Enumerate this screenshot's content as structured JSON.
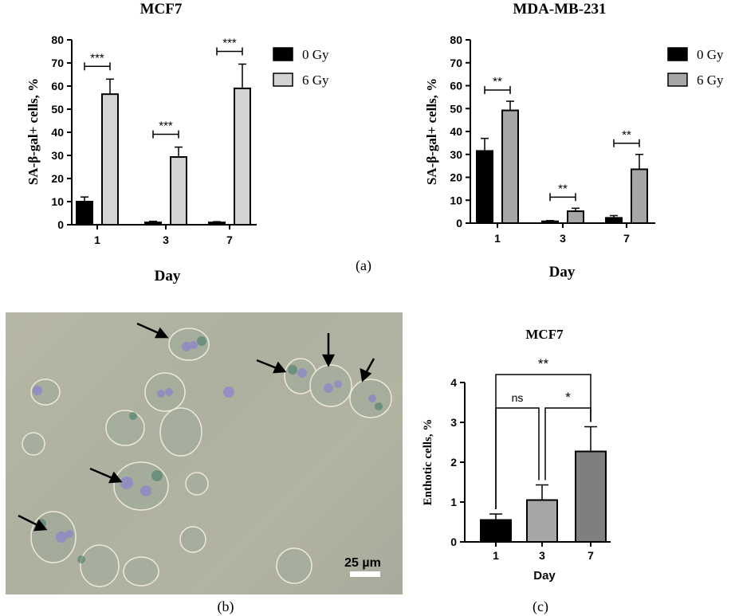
{
  "panel_labels": {
    "a": "(a)",
    "b": "(b)",
    "c": "(c)"
  },
  "photo": {
    "scale_bar_label": "25 µm"
  },
  "colors": {
    "gy0": "#000000",
    "gy6_mcf7": "#d3d3d3",
    "gy6_mda": "#a6a6a6",
    "c_day1": "#000000",
    "c_day3": "#a6a6a6",
    "c_day7": "#7f7f7f",
    "photo_bg": "#b1b2a1",
    "cell_stain": "#4a7a6a",
    "nucleus": "#7d78c8"
  },
  "chart_data": [
    {
      "type": "bar",
      "title": "MCF7",
      "xlabel": "Day",
      "ylabel": "SA-β-gal+ cells, %",
      "categories": [
        "1",
        "3",
        "7"
      ],
      "ylim": [
        0,
        80
      ],
      "yticks": [
        "0",
        "10",
        "20",
        "30",
        "40",
        "50",
        "60",
        "70",
        "80"
      ],
      "series": [
        {
          "name": "0 Gy",
          "values": [
            10,
            1,
            1
          ],
          "errors": [
            2,
            0.5,
            0.3
          ]
        },
        {
          "name": "6 Gy",
          "values": [
            56.5,
            29.3,
            59
          ],
          "errors": [
            6.5,
            4.3,
            10.5
          ]
        }
      ],
      "significance": [
        "***",
        "***",
        "***"
      ],
      "legend": "right"
    },
    {
      "type": "bar",
      "title": "MDA-MB-231",
      "xlabel": "Day",
      "ylabel": "SA-β-gal+ cells, %",
      "categories": [
        "1",
        "3",
        "7"
      ],
      "ylim": [
        0,
        80
      ],
      "yticks": [
        "0",
        "10",
        "20",
        "30",
        "40",
        "50",
        "60",
        "70",
        "80"
      ],
      "series": [
        {
          "name": "0 Gy",
          "values": [
            31.5,
            0.8,
            2.3
          ],
          "errors": [
            5.5,
            0.3,
            1.0
          ]
        },
        {
          "name": "6 Gy",
          "values": [
            49.2,
            5.2,
            23.5
          ],
          "errors": [
            4,
            1.3,
            6.5
          ]
        }
      ],
      "significance": [
        "**",
        "**",
        "**"
      ],
      "legend": "right"
    },
    {
      "type": "bar",
      "title": "MCF7",
      "xlabel": "Day",
      "ylabel": "Enthotic cells, %",
      "categories": [
        "1",
        "3",
        "7"
      ],
      "ylim": [
        0,
        4
      ],
      "yticks": [
        "0",
        "1",
        "2",
        "3",
        "4"
      ],
      "values": [
        0.55,
        1.05,
        2.27
      ],
      "errors": [
        0.15,
        0.38,
        0.62
      ],
      "comparisons": [
        {
          "pair": [
            "1",
            "7"
          ],
          "label": "**"
        },
        {
          "pair": [
            "1",
            "3"
          ],
          "label": "ns"
        },
        {
          "pair": [
            "3",
            "7"
          ],
          "label": "*"
        }
      ]
    }
  ]
}
